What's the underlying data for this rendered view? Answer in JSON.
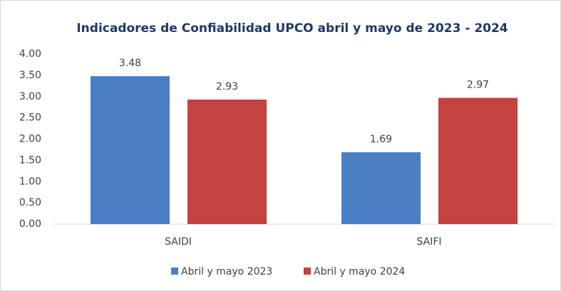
{
  "chart_data": {
    "type": "bar",
    "title": "Indicadores de Confiabilidad UPCO abril y mayo de 2023 - 2024",
    "categories": [
      "SAIDI",
      "SAIFI"
    ],
    "series": [
      {
        "name": "Abril y mayo 2023",
        "color": "#4a7fc4",
        "values": [
          3.48,
          1.69
        ]
      },
      {
        "name": "Abril y mayo 2024",
        "color": "#c4423f",
        "values": [
          2.93,
          2.97
        ]
      }
    ],
    "ylim": [
      0,
      4
    ],
    "yticks": [
      {
        "value": 0,
        "label": "0.00"
      },
      {
        "value": 0.5,
        "label": "0.50"
      },
      {
        "value": 1,
        "label": "1.00"
      },
      {
        "value": 1.5,
        "label": "1.50"
      },
      {
        "value": 2,
        "label": "2.00"
      },
      {
        "value": 2.5,
        "label": "2.50"
      },
      {
        "value": 3,
        "label": "3.00"
      },
      {
        "value": 3.5,
        "label": "3.50"
      },
      {
        "value": 4,
        "label": "4.00"
      }
    ],
    "legend": "bottom"
  }
}
